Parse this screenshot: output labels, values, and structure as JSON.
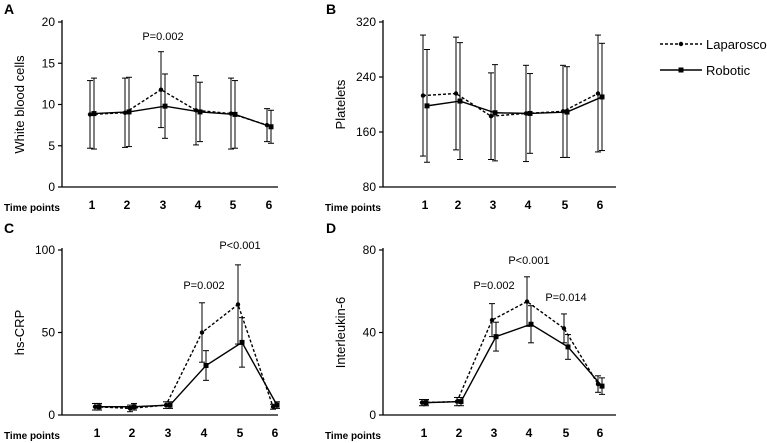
{
  "legend": {
    "laparoscopic": "Laparoscopic",
    "robotic": "Robotic"
  },
  "x_axis_label": "Time points",
  "chart_data": [
    {
      "panel": "A",
      "type": "line",
      "ylabel": "White blood cells",
      "ylim": [
        0,
        20
      ],
      "yticks": [
        0,
        5,
        10,
        15,
        20
      ],
      "categories": [
        "1",
        "2",
        "3",
        "4",
        "5",
        "6"
      ],
      "series": [
        {
          "name": "Laparoscopic",
          "style": "dashed",
          "values": [
            8.8,
            9.0,
            11.8,
            9.3,
            8.9,
            7.5
          ],
          "err": [
            4.1,
            4.2,
            4.6,
            4.2,
            4.3,
            2.0
          ]
        },
        {
          "name": "Robotic",
          "style": "solid",
          "values": [
            8.9,
            9.1,
            9.8,
            9.1,
            8.8,
            7.3
          ],
          "err": [
            4.3,
            4.2,
            3.9,
            3.6,
            4.1,
            2.0
          ]
        }
      ],
      "annotations": [
        {
          "text": "P=0.002",
          "x": "3"
        }
      ]
    },
    {
      "panel": "B",
      "type": "line",
      "ylabel": "Platelets",
      "ylim": [
        80,
        320
      ],
      "yticks": [
        80,
        160,
        240,
        320
      ],
      "categories": [
        "1",
        "2",
        "3",
        "4",
        "5",
        "6"
      ],
      "series": [
        {
          "name": "Laparoscopic",
          "style": "dashed",
          "values": [
            213,
            216,
            183,
            187,
            190,
            216
          ],
          "err": [
            88,
            82,
            63,
            70,
            67,
            85
          ]
        },
        {
          "name": "Robotic",
          "style": "solid",
          "values": [
            198,
            205,
            188,
            187,
            189,
            211
          ],
          "err": [
            82,
            85,
            70,
            58,
            66,
            78
          ]
        }
      ],
      "annotations": []
    },
    {
      "panel": "C",
      "type": "line",
      "ylabel": "hs-CRP",
      "ylim": [
        0,
        100
      ],
      "yticks": [
        0,
        50,
        100
      ],
      "categories": [
        "1",
        "2",
        "3",
        "4",
        "5",
        "6"
      ],
      "series": [
        {
          "name": "Laparoscopic",
          "style": "dashed",
          "values": [
            5,
            4,
            6,
            50,
            67,
            5
          ],
          "err": [
            2,
            2,
            2,
            18,
            24,
            1.5
          ]
        },
        {
          "name": "Robotic",
          "style": "solid",
          "values": [
            5,
            5,
            6,
            30,
            44,
            6
          ],
          "err": [
            2,
            2,
            2,
            9,
            15,
            2
          ]
        }
      ],
      "annotations": [
        {
          "text": "P=0.002",
          "x": "4"
        },
        {
          "text": "P<0.001",
          "x": "5"
        }
      ]
    },
    {
      "panel": "D",
      "type": "line",
      "ylabel": "Interleukin-6",
      "ylim": [
        0,
        80
      ],
      "yticks": [
        0,
        40,
        80
      ],
      "categories": [
        "1",
        "2",
        "3",
        "4",
        "5",
        "6"
      ],
      "series": [
        {
          "name": "Laparoscopic",
          "style": "dashed",
          "values": [
            6,
            6.5,
            46,
            55,
            42,
            15
          ],
          "err": [
            1.5,
            2,
            8,
            12,
            7,
            4
          ]
        },
        {
          "name": "Robotic",
          "style": "solid",
          "values": [
            6,
            6.5,
            38,
            44,
            33,
            14
          ],
          "err": [
            1.5,
            2,
            7,
            9,
            6,
            4
          ]
        }
      ],
      "annotations": [
        {
          "text": "P=0.002",
          "x": "3"
        },
        {
          "text": "P<0.001",
          "x": "4"
        },
        {
          "text": "P=0.014",
          "x": "5"
        }
      ]
    }
  ]
}
